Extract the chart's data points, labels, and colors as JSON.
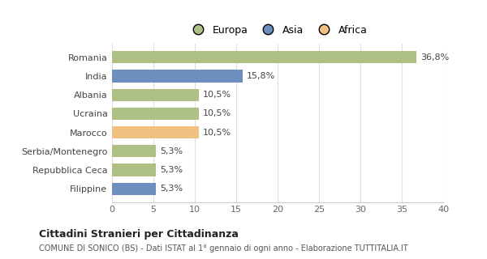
{
  "categories": [
    "Filippine",
    "Repubblica Ceca",
    "Serbia/Montenegro",
    "Marocco",
    "Ucraina",
    "Albania",
    "India",
    "Romania"
  ],
  "values": [
    5.3,
    5.3,
    5.3,
    10.5,
    10.5,
    10.5,
    15.8,
    36.8
  ],
  "colors": [
    "#6d8fbf",
    "#afc seventeen",
    "#afc085",
    "#f0c080",
    "#afc085",
    "#afc085",
    "#6d8fbf",
    "#afc085"
  ],
  "bar_colors": [
    "#6d8fbf",
    "#afc085",
    "#afc085",
    "#f0c080",
    "#afc085",
    "#afc085",
    "#6d8fbf",
    "#afc085"
  ],
  "labels": [
    "5,3%",
    "5,3%",
    "5,3%",
    "10,5%",
    "10,5%",
    "10,5%",
    "15,8%",
    "36,8%"
  ],
  "xlim": [
    0,
    40
  ],
  "xticks": [
    0,
    5,
    10,
    15,
    20,
    25,
    30,
    35,
    40
  ],
  "legend_labels": [
    "Europa",
    "Asia",
    "Africa"
  ],
  "legend_colors": [
    "#afc085",
    "#6d8fbf",
    "#f0c080"
  ],
  "title": "Cittadini Stranieri per Cittadinanza",
  "subtitle": "COMUNE DI SONICO (BS) - Dati ISTAT al 1° gennaio di ogni anno - Elaborazione TUTTITALIA.IT",
  "bg_color": "#ffffff",
  "grid_color": "#e0e0e0",
  "bar_height": 0.65
}
